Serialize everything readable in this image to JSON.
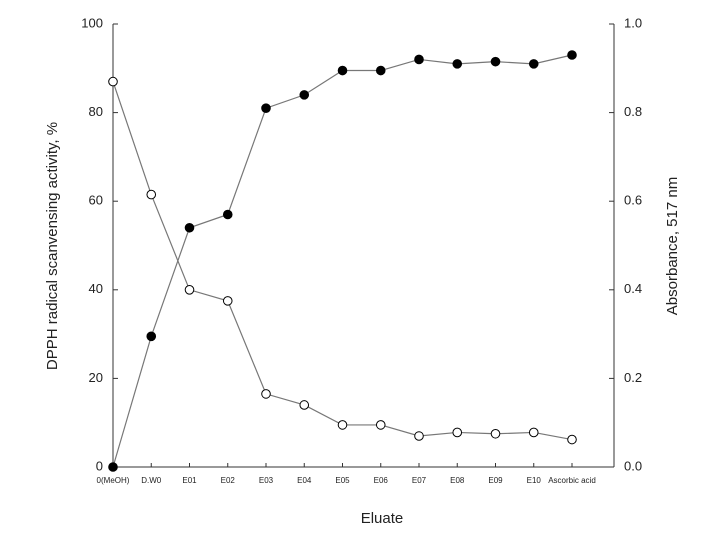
{
  "chart_data": {
    "type": "line",
    "x_label": "Eluate",
    "y_label": "DPPH radical scanvensing activity, %",
    "y2_label": "Absorbance, 517 nm",
    "categories": [
      "0(MeOH)",
      "D.W0",
      "E01",
      "E02",
      "E03",
      "E04",
      "E05",
      "E06",
      "E07",
      "E08",
      "E09",
      "E10",
      "Ascorbic acid"
    ],
    "series": [
      {
        "color": "#000000",
        "marker": "filled",
        "values": [
          0,
          29.5,
          54,
          57,
          81,
          84,
          89.5,
          89.5,
          92,
          91,
          91.5,
          91,
          93
        ]
      },
      {
        "color": "#000000",
        "marker": "open",
        "axis": "y2",
        "values": [
          0.87,
          0.615,
          0.4,
          0.375,
          0.165,
          0.14,
          0.095,
          0.095,
          0.07,
          0.078,
          0.075,
          0.078,
          0.062
        ]
      }
    ],
    "ylim": [
      0,
      100
    ],
    "yticks": [
      0,
      20,
      40,
      60,
      80,
      100
    ],
    "y2lim": [
      0,
      1
    ],
    "y2ticks": [
      {
        "value": 0,
        "label": "0.0"
      },
      0.2,
      0.4,
      0.6,
      0.8,
      {
        "value": 1,
        "label": "1.0"
      }
    ],
    "grid": false
  }
}
